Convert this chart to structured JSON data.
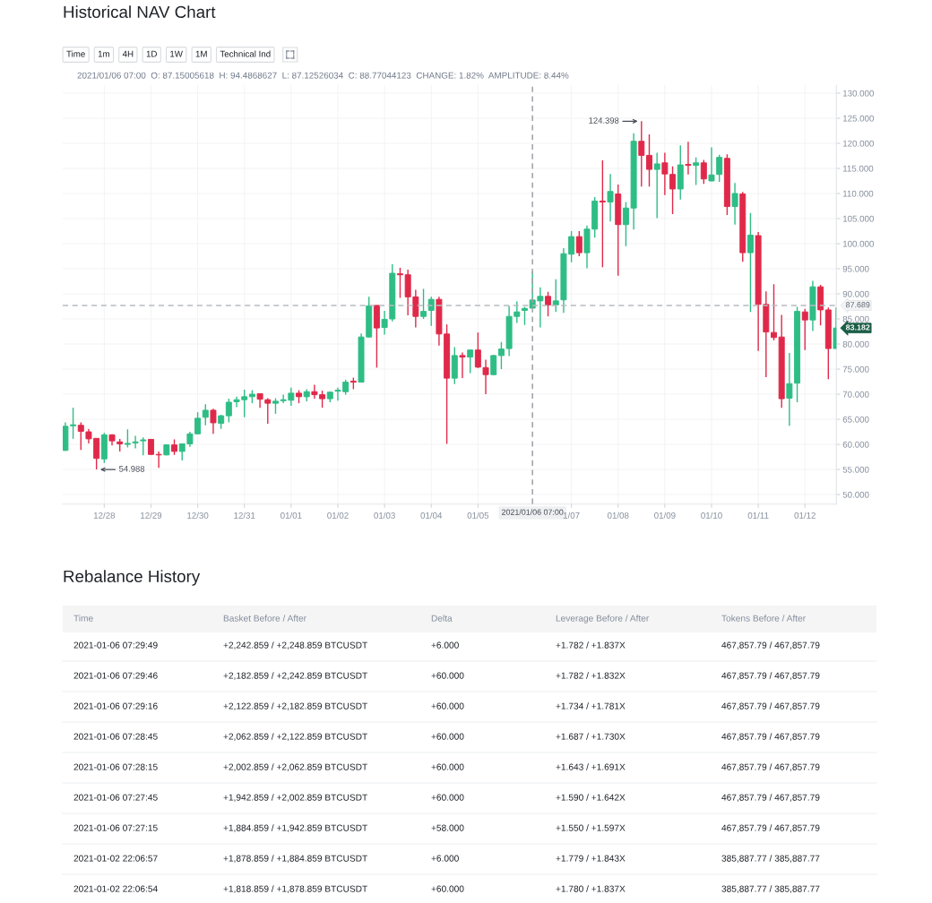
{
  "chart_data": [
    {
      "type": "candlestick",
      "title": "Historical NAV Chart",
      "subtitle": "2021/01/06 07:00  O: 87.15005618  H: 94.4868627  L: 87.12526034  C: 88.77044123  CHANGE: 1.82%  AMPLITUDE: 8.44%",
      "annotations": [
        "Time",
        "1m",
        "4H",
        "1D",
        "1W",
        "1M",
        "Technical Ind",
        {
          "text": "124.398",
          "x": "2021-01-08T15:00",
          "y": 124.398
        },
        {
          "text": "54.988",
          "x": "2020-12-27T23:00",
          "y": 54.988
        }
      ],
      "x": [
        "2020-12-27T07:00",
        "2020-12-27T11:00",
        "2020-12-27T15:00",
        "2020-12-27T19:00",
        "2020-12-27T23:00",
        "2020-12-28T03:00",
        "2020-12-28T07:00",
        "2020-12-28T11:00",
        "2020-12-28T15:00",
        "2020-12-28T19:00",
        "2020-12-28T23:00",
        "2020-12-29T03:00",
        "2020-12-29T07:00",
        "2020-12-29T11:00",
        "2020-12-29T15:00",
        "2020-12-29T19:00",
        "2020-12-29T23:00",
        "2020-12-30T03:00",
        "2020-12-30T07:00",
        "2020-12-30T11:00",
        "2020-12-30T15:00",
        "2020-12-30T19:00",
        "2020-12-30T23:00",
        "2020-12-31T03:00",
        "2020-12-31T07:00",
        "2020-12-31T11:00",
        "2020-12-31T15:00",
        "2020-12-31T19:00",
        "2020-12-31T23:00",
        "2021-01-01T03:00",
        "2021-01-01T07:00",
        "2021-01-01T11:00",
        "2021-01-01T15:00",
        "2021-01-01T19:00",
        "2021-01-01T23:00",
        "2021-01-02T03:00",
        "2021-01-02T07:00",
        "2021-01-02T11:00",
        "2021-01-02T15:00",
        "2021-01-02T19:00",
        "2021-01-02T23:00",
        "2021-01-03T03:00",
        "2021-01-03T07:00",
        "2021-01-03T11:00",
        "2021-01-03T15:00",
        "2021-01-03T19:00",
        "2021-01-03T23:00",
        "2021-01-04T03:00",
        "2021-01-04T07:00",
        "2021-01-04T11:00",
        "2021-01-04T15:00",
        "2021-01-04T19:00",
        "2021-01-04T23:00",
        "2021-01-05T03:00",
        "2021-01-05T07:00",
        "2021-01-05T11:00",
        "2021-01-05T15:00",
        "2021-01-05T19:00",
        "2021-01-05T23:00",
        "2021-01-06T03:00",
        "2021-01-06T07:00",
        "2021-01-06T11:00",
        "2021-01-06T15:00",
        "2021-01-06T19:00",
        "2021-01-06T23:00",
        "2021-01-07T03:00",
        "2021-01-07T07:00",
        "2021-01-07T11:00",
        "2021-01-07T15:00",
        "2021-01-07T19:00",
        "2021-01-07T23:00",
        "2021-01-08T03:00",
        "2021-01-08T07:00",
        "2021-01-08T11:00",
        "2021-01-08T15:00",
        "2021-01-08T19:00",
        "2021-01-08T23:00",
        "2021-01-09T03:00",
        "2021-01-09T07:00",
        "2021-01-09T11:00",
        "2021-01-09T15:00",
        "2021-01-09T19:00",
        "2021-01-09T23:00",
        "2021-01-10T03:00",
        "2021-01-10T07:00",
        "2021-01-10T11:00",
        "2021-01-10T15:00",
        "2021-01-10T19:00",
        "2021-01-10T23:00",
        "2021-01-11T03:00",
        "2021-01-11T07:00",
        "2021-01-11T11:00",
        "2021-01-11T15:00",
        "2021-01-11T19:00",
        "2021-01-11T23:00",
        "2021-01-12T03:00",
        "2021-01-12T07:00",
        "2021-01-12T11:00",
        "2021-01-12T15:00",
        "2021-01-12T19:00"
      ],
      "ohlc": [
        [
          58.8,
          64.4,
          58.7,
          63.6
        ],
        [
          63.7,
          67.3,
          61.1,
          63.9
        ],
        [
          63.8,
          64.4,
          58.9,
          62.6
        ],
        [
          62.5,
          63.1,
          60.2,
          61.1
        ],
        [
          61.2,
          61.2,
          54.988,
          57.2
        ],
        [
          57.1,
          62.3,
          56.3,
          61.9
        ],
        [
          61.9,
          62.0,
          59.8,
          60.7
        ],
        [
          60.5,
          61.1,
          58.6,
          60.1
        ],
        [
          60.0,
          63.0,
          59.4,
          60.2
        ],
        [
          60.3,
          61.7,
          59.2,
          60.5
        ],
        [
          60.7,
          61.4,
          57.8,
          60.9
        ],
        [
          61.0,
          61.0,
          57.9,
          58.0
        ],
        [
          58.0,
          58.6,
          55.3,
          57.9
        ],
        [
          57.9,
          60.0,
          57.8,
          59.9
        ],
        [
          59.9,
          61.0,
          57.9,
          58.6
        ],
        [
          58.6,
          60.1,
          56.8,
          60.1
        ],
        [
          60.1,
          62.5,
          59.5,
          62.1
        ],
        [
          62.1,
          66.4,
          62.1,
          65.2
        ],
        [
          65.4,
          68.0,
          63.8,
          66.8
        ],
        [
          66.8,
          67.1,
          62.1,
          64.3
        ],
        [
          64.2,
          65.9,
          63.1,
          65.7
        ],
        [
          65.7,
          69.1,
          64.4,
          68.4
        ],
        [
          68.5,
          69.5,
          67.4,
          68.9
        ],
        [
          68.9,
          70.9,
          65.4,
          69.5
        ],
        [
          69.5,
          70.8,
          68.2,
          70.0
        ],
        [
          70.1,
          70.2,
          67.3,
          69.0
        ],
        [
          68.9,
          69.2,
          64.1,
          68.2
        ],
        [
          68.2,
          69.2,
          66.1,
          68.6
        ],
        [
          68.7,
          69.9,
          68.2,
          68.9
        ],
        [
          68.8,
          71.3,
          67.7,
          70.2
        ],
        [
          70.2,
          70.8,
          68.2,
          69.5
        ],
        [
          69.5,
          71.0,
          68.6,
          70.5
        ],
        [
          70.5,
          71.9,
          69.1,
          69.9
        ],
        [
          69.9,
          70.7,
          67.3,
          69.1
        ],
        [
          69.1,
          70.5,
          68.4,
          70.4
        ],
        [
          70.6,
          71.3,
          68.7,
          70.8
        ],
        [
          70.5,
          72.9,
          69.9,
          72.4
        ],
        [
          72.6,
          73.3,
          71.0,
          72.4
        ],
        [
          72.4,
          82.1,
          72.4,
          81.4
        ],
        [
          81.4,
          89.4,
          81.3,
          87.6
        ],
        [
          87.7,
          87.7,
          75.3,
          83.2
        ],
        [
          83.3,
          86.6,
          81.9,
          84.9
        ],
        [
          85.0,
          95.9,
          84.5,
          94.1
        ],
        [
          94.0,
          95.2,
          89.2,
          93.8
        ],
        [
          93.8,
          94.8,
          85.7,
          89.4
        ],
        [
          89.4,
          90.8,
          83.3,
          85.5
        ],
        [
          85.5,
          91.0,
          85.0,
          86.5
        ],
        [
          86.7,
          89.4,
          83.6,
          88.9
        ],
        [
          88.9,
          89.4,
          79.7,
          82.0
        ],
        [
          82.0,
          83.9,
          60.1,
          73.2
        ],
        [
          73.2,
          79.4,
          72.0,
          77.7
        ],
        [
          77.7,
          78.3,
          73.2,
          77.4
        ],
        [
          77.4,
          78.8,
          74.2,
          78.8
        ],
        [
          78.8,
          82.3,
          75.2,
          75.4
        ],
        [
          75.3,
          76.9,
          70.0,
          73.9
        ],
        [
          73.9,
          77.8,
          73.8,
          77.7
        ],
        [
          77.7,
          80.4,
          75.0,
          79.0
        ],
        [
          79.1,
          87.6,
          77.6,
          85.5
        ],
        [
          85.5,
          88.5,
          84.2,
          86.4
        ],
        [
          86.7,
          87.4,
          83.8,
          87.1
        ],
        [
          87.15005618,
          94.4868627,
          87.12526034,
          88.77044123
        ],
        [
          88.6,
          91.3,
          83.3,
          89.5
        ],
        [
          89.5,
          90.4,
          85.5,
          87.8
        ],
        [
          87.8,
          92.9,
          86.4,
          88.6
        ],
        [
          88.8,
          99.1,
          86.2,
          98.0
        ],
        [
          97.9,
          102.5,
          96.3,
          101.4
        ],
        [
          101.4,
          102.5,
          97.5,
          98.2
        ],
        [
          98.2,
          103.6,
          95.1,
          102.9
        ],
        [
          102.9,
          109.3,
          101.2,
          108.5
        ],
        [
          108.5,
          116.6,
          95.3,
          108.3
        ],
        [
          108.3,
          113.9,
          104.4,
          110.4
        ],
        [
          109.9,
          111.8,
          93.6,
          103.8
        ],
        [
          103.8,
          108.3,
          99.5,
          107.1
        ],
        [
          107.1,
          122.0,
          102.8,
          120.4
        ],
        [
          120.4,
          124.398,
          111.4,
          117.6
        ],
        [
          117.6,
          121.8,
          111.4,
          114.8
        ],
        [
          114.8,
          118.1,
          105.1,
          115.9
        ],
        [
          116.1,
          118.1,
          109.7,
          113.9
        ],
        [
          113.8,
          115.4,
          105.9,
          110.9
        ],
        [
          110.9,
          119.6,
          108.8,
          115.7
        ],
        [
          115.8,
          120.3,
          113.8,
          115.6
        ],
        [
          115.6,
          117.2,
          111.7,
          116.1
        ],
        [
          116.1,
          116.7,
          111.9,
          112.9
        ],
        [
          112.5,
          119.2,
          112.4,
          113.7
        ],
        [
          113.8,
          117.7,
          112.3,
          117.2
        ],
        [
          117.0,
          117.8,
          105.7,
          107.4
        ],
        [
          107.4,
          112.1,
          103.8,
          110.0
        ],
        [
          109.9,
          110.3,
          96.4,
          98.2
        ],
        [
          98.2,
          106.1,
          86.4,
          101.7
        ],
        [
          101.6,
          102.3,
          78.6,
          87.9
        ],
        [
          87.9,
          90.5,
          73.4,
          82.4
        ],
        [
          82.3,
          91.9,
          80.7,
          81.3
        ],
        [
          81.4,
          85.8,
          67.3,
          69.1
        ],
        [
          69.2,
          78.2,
          63.7,
          72.1
        ],
        [
          72.2,
          87.4,
          68.4,
          86.5
        ],
        [
          86.4,
          87.0,
          78.8,
          84.8
        ],
        [
          84.8,
          92.6,
          82.6,
          91.4
        ],
        [
          91.4,
          91.8,
          83.7,
          86.8
        ],
        [
          86.8,
          87.3,
          73.0,
          79.1
        ],
        [
          79.1,
          87.3,
          79.1,
          83.182
        ]
      ],
      "colors": [
        "#2ebd85",
        "#2ebd85",
        "#e0294a",
        "#e0294a",
        "#e0294a",
        "#2ebd85",
        "#e0294a",
        "#e0294a",
        "#2ebd85",
        "#2ebd85",
        "#2ebd85",
        "#e0294a",
        "#e0294a",
        "#2ebd85",
        "#e0294a",
        "#2ebd85",
        "#2ebd85",
        "#2ebd85",
        "#2ebd85",
        "#e0294a",
        "#2ebd85",
        "#2ebd85",
        "#2ebd85",
        "#2ebd85",
        "#2ebd85",
        "#e0294a",
        "#e0294a",
        "#2ebd85",
        "#2ebd85",
        "#2ebd85",
        "#e0294a",
        "#2ebd85",
        "#e0294a",
        "#e0294a",
        "#2ebd85",
        "#2ebd85",
        "#2ebd85",
        "#e0294a",
        "#2ebd85",
        "#2ebd85",
        "#e0294a",
        "#2ebd85",
        "#2ebd85",
        "#e0294a",
        "#e0294a",
        "#e0294a",
        "#2ebd85",
        "#2ebd85",
        "#e0294a",
        "#e0294a",
        "#2ebd85",
        "#e0294a",
        "#2ebd85",
        "#e0294a",
        "#e0294a",
        "#2ebd85",
        "#2ebd85",
        "#2ebd85",
        "#2ebd85",
        "#2ebd85",
        "#2ebd85",
        "#2ebd85",
        "#e0294a",
        "#2ebd85",
        "#2ebd85",
        "#2ebd85",
        "#e0294a",
        "#2ebd85",
        "#2ebd85",
        "#e0294a",
        "#2ebd85",
        "#e0294a",
        "#2ebd85",
        "#2ebd85",
        "#e0294a",
        "#e0294a",
        "#2ebd85",
        "#e0294a",
        "#e0294a",
        "#2ebd85",
        "#e0294a",
        "#2ebd85",
        "#e0294a",
        "#2ebd85",
        "#2ebd85",
        "#e0294a",
        "#2ebd85",
        "#e0294a",
        "#2ebd85",
        "#e0294a",
        "#e0294a",
        "#e0294a",
        "#e0294a",
        "#2ebd85",
        "#2ebd85",
        "#e0294a",
        "#2ebd85",
        "#e0294a",
        "#e0294a",
        "#2ebd85"
      ],
      "value_labels": [
        null,
        null,
        null,
        null,
        null,
        null,
        null,
        null,
        null,
        null,
        null,
        null,
        null,
        null,
        null,
        null,
        null,
        null,
        null,
        null,
        null,
        null,
        null,
        null,
        null,
        null,
        null,
        null,
        null,
        null,
        null,
        null,
        null,
        null,
        null,
        null,
        null,
        null,
        null,
        null,
        null,
        null,
        null,
        null,
        null,
        null,
        null,
        null,
        null,
        null,
        null,
        null,
        null,
        null,
        null,
        null,
        null,
        null,
        null,
        null,
        null,
        null,
        null,
        null,
        null,
        null,
        null,
        null,
        null,
        null,
        null,
        null,
        null,
        null,
        null,
        null,
        null,
        null,
        null,
        null,
        null,
        null,
        null,
        null,
        null,
        null,
        null,
        null,
        null,
        null,
        null,
        null,
        null,
        null,
        null,
        null,
        null,
        null,
        null,
        "83.182"
      ],
      "xlim": [
        "2020-12-27T05:40",
        "2021-01-12T19:08"
      ],
      "ylim": [
        48.1,
        131.6
      ],
      "xticks": [
        {
          "value": "2020-12-28T03:00",
          "label": "12/28"
        },
        {
          "value": "2020-12-29T03:00",
          "label": "12/29"
        },
        {
          "value": "2020-12-30T03:00",
          "label": "12/30"
        },
        {
          "value": "2020-12-31T03:00",
          "label": "12/31"
        },
        {
          "value": "2021-01-01T03:00",
          "label": "01/01"
        },
        {
          "value": "2021-01-02T03:00",
          "label": "01/02"
        },
        {
          "value": "2021-01-03T03:00",
          "label": "01/03"
        },
        {
          "value": "2021-01-04T03:00",
          "label": "01/04"
        },
        {
          "value": "2021-01-05T03:00",
          "label": "01/05"
        },
        {
          "value": "2021-01-07T03:00",
          "label": "1/07"
        },
        {
          "value": "2021-01-08T03:00",
          "label": "01/08"
        },
        {
          "value": "2021-01-09T03:00",
          "label": "01/09"
        },
        {
          "value": "2021-01-10T03:00",
          "label": "01/10"
        },
        {
          "value": "2021-01-11T03:00",
          "label": "01/11"
        },
        {
          "value": "2021-01-12T03:00",
          "label": "01/12"
        }
      ],
      "yticks": [
        {
          "value": 50,
          "label": "50.000"
        },
        {
          "value": 55,
          "label": "55.000"
        },
        {
          "value": 60,
          "label": "60.000"
        },
        {
          "value": 65,
          "label": "65.000"
        },
        {
          "value": 70,
          "label": "70.000"
        },
        {
          "value": 75,
          "label": "75.000"
        },
        {
          "value": 80,
          "label": "80.000"
        },
        {
          "value": 85,
          "label": "85.000"
        },
        {
          "value": 90,
          "label": "90.000"
        },
        {
          "value": 95,
          "label": "95.000"
        },
        {
          "value": 100,
          "label": "100.000"
        },
        {
          "value": 105,
          "label": "105.000"
        },
        {
          "value": 110,
          "label": "110.000"
        },
        {
          "value": 115,
          "label": "115.000"
        },
        {
          "value": 120,
          "label": "120.000"
        },
        {
          "value": 125,
          "label": "125.000"
        },
        {
          "value": 130,
          "label": "130.000"
        }
      ],
      "grid": true,
      "ref_lines": [
        {
          "axis": "y",
          "value": 87.689,
          "label": "87.689",
          "color": "#b7bbc0",
          "line_style": "dashed"
        },
        {
          "axis": "x",
          "value": "2021-01-06T07:00",
          "label": "2021/01/06 07:00",
          "color": "#9ea2a8",
          "line_style": "dashed"
        }
      ]
    },
    {
      "type": "other",
      "title": "Rebalance History",
      "categories": [
        "Time",
        "Basket Before / After",
        "Delta",
        "Leverage Before / After",
        "Tokens Before / After"
      ],
      "annotations": [
        "2021-01-06 07:29:49",
        "+2,242.859 / +2,248.859 BTCUSDT",
        "+6.000",
        "+1.782 / +1.837X",
        "467,857.79 / 467,857.79",
        "2021-01-06 07:29:46",
        "+2,182.859 / +2,242.859 BTCUSDT",
        "+60.000",
        "+1.782 / +1.832X",
        "467,857.79 / 467,857.79",
        "2021-01-06 07:29:16",
        "+2,122.859 / +2,182.859 BTCUSDT",
        "+60.000",
        "+1.734 / +1.781X",
        "467,857.79 / 467,857.79",
        "2021-01-06 07:28:45",
        "+2,062.859 / +2,122.859 BTCUSDT",
        "+60.000",
        "+1.687 / +1.730X",
        "467,857.79 / 467,857.79",
        "2021-01-06 07:28:15",
        "+2,002.859 / +2,062.859 BTCUSDT",
        "+60.000",
        "+1.643 / +1.691X",
        "467,857.79 / 467,857.79",
        "2021-01-06 07:27:45",
        "+1,942.859 / +2,002.859 BTCUSDT",
        "+60.000",
        "+1.590 / +1.642X",
        "467,857.79 / 467,857.79",
        "2021-01-06 07:27:15",
        "+1,884.859 / +1,942.859 BTCUSDT",
        "+58.000",
        "+1.550 / +1.597X",
        "467,857.79 / 467,857.79",
        "2021-01-02 22:06:57",
        "+1,878.859 / +1,884.859 BTCUSDT",
        "+6.000",
        "+1.779 / +1.843X",
        "385,887.77 / 385,887.77",
        "2021-01-02 22:06:54",
        "+1,818.859 / +1,878.859 BTCUSDT",
        "+60.000",
        "+1.780 / +1.837X",
        "385,887.77 / 385,887.77"
      ]
    }
  ]
}
